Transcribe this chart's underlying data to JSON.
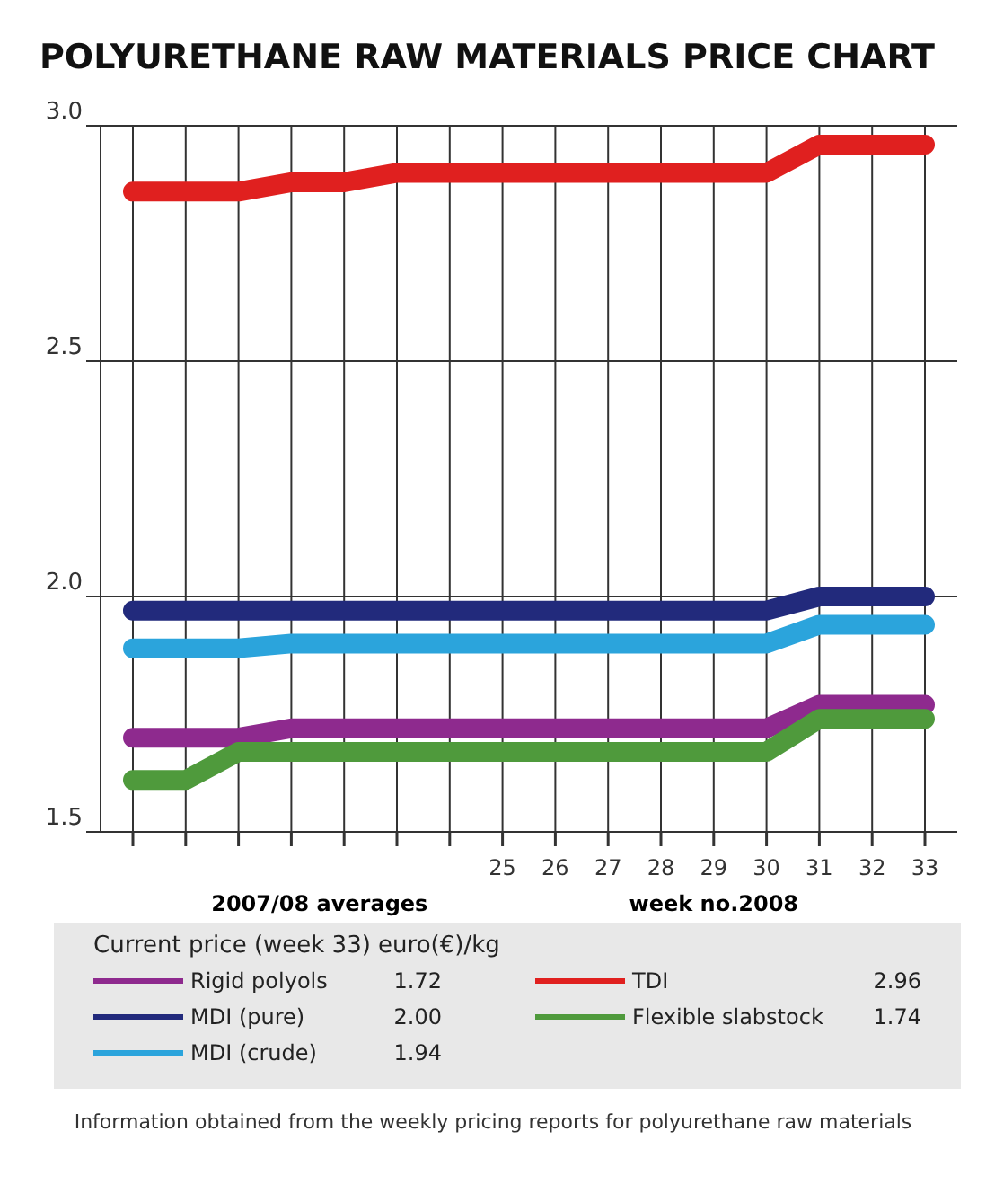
{
  "chart_data": {
    "type": "line",
    "title": "POLYURETHANE RAW MATERIALS PRICE CHART",
    "xlabel": "week no.2008",
    "categories": [
      null,
      null,
      null,
      null,
      null,
      null,
      null,
      "25",
      "26",
      "27",
      "28",
      "29",
      "30",
      "31",
      "32",
      "33"
    ],
    "series": [
      {
        "name": "Rigid polyols",
        "color": "#8e2a8e",
        "values": [
          1.7,
          1.7,
          1.7,
          1.72,
          1.72,
          1.72,
          1.72,
          1.72,
          1.72,
          1.72,
          1.72,
          1.72,
          1.72,
          1.77,
          1.77,
          1.77
        ]
      },
      {
        "name": "MDI (pure)",
        "color": "#222a7c",
        "values": [
          1.97,
          1.97,
          1.97,
          1.97,
          1.97,
          1.97,
          1.97,
          1.97,
          1.97,
          1.97,
          1.97,
          1.97,
          1.97,
          2.0,
          2.0,
          2.0
        ]
      },
      {
        "name": "MDI (crude)",
        "color": "#2ba4dc",
        "values": [
          1.89,
          1.89,
          1.89,
          1.9,
          1.9,
          1.9,
          1.9,
          1.9,
          1.9,
          1.9,
          1.9,
          1.9,
          1.9,
          1.94,
          1.94,
          1.94
        ]
      },
      {
        "name": "TDI",
        "color": "#e0201f",
        "values": [
          2.86,
          2.86,
          2.86,
          2.88,
          2.88,
          2.9,
          2.9,
          2.9,
          2.9,
          2.9,
          2.9,
          2.9,
          2.9,
          2.96,
          2.96,
          2.96
        ]
      },
      {
        "name": "Flexible slabstock",
        "color": "#4f9a3c",
        "values": [
          1.61,
          1.61,
          1.67,
          1.67,
          1.67,
          1.67,
          1.67,
          1.67,
          1.67,
          1.67,
          1.67,
          1.67,
          1.67,
          1.74,
          1.74,
          1.74
        ]
      }
    ],
    "ylim": [
      1.5,
      3.0
    ],
    "yticks": [
      1.5,
      {
        "value": 2,
        "label": "2.0"
      },
      2.5,
      {
        "value": 3,
        "label": "3.0"
      }
    ],
    "grid": true,
    "legend": "bottom",
    "marker": "none",
    "line_style": "solid",
    "annotations": [
      "2007/08 averages",
      "Current price (week 33) euro(€)/kg",
      "1.72",
      "2.00",
      "1.94",
      "2.96",
      "1.74",
      "Information obtained from the weekly pricing reports for polyurethane raw materials"
    ]
  }
}
